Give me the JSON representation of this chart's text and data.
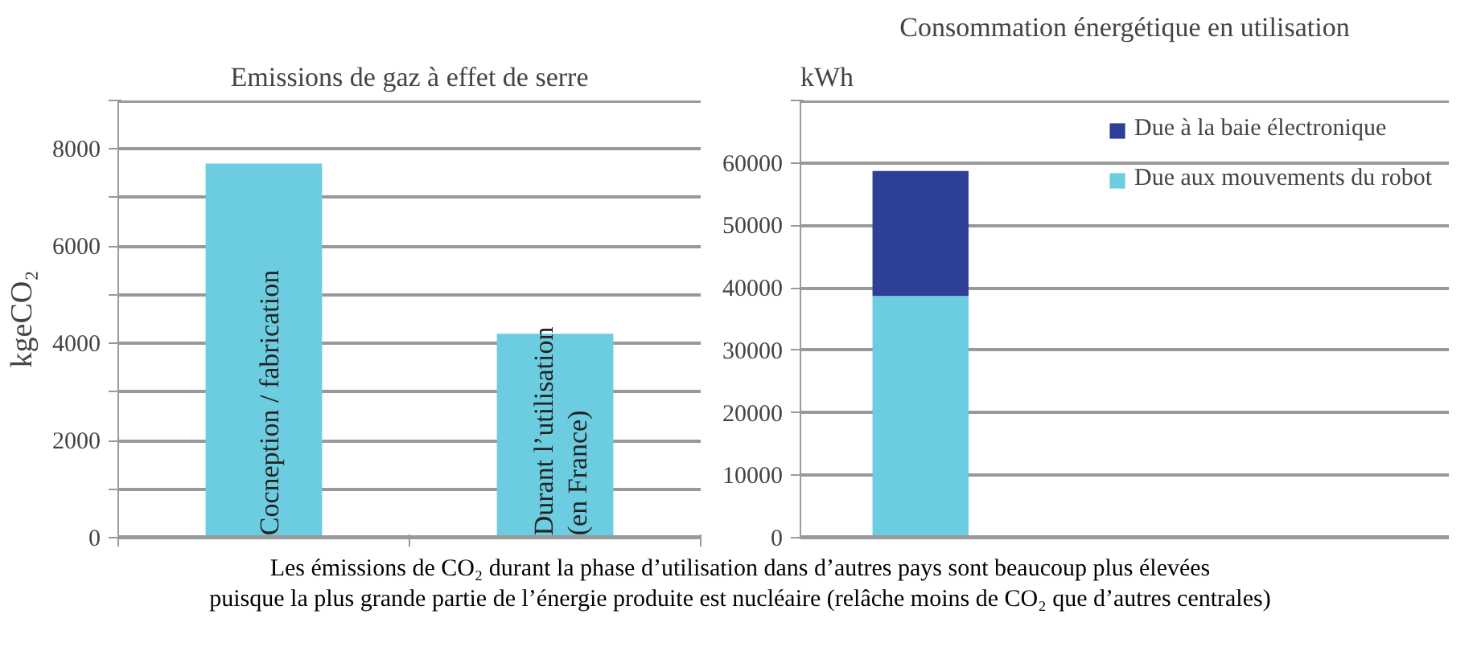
{
  "chart_data": [
    {
      "type": "bar",
      "title": "Emissions de gaz à effet de serre",
      "ylabel": "kgeCO₂",
      "categories": [
        "Cocneption / fabrication",
        "Durant l’utilisation\n(en France)"
      ],
      "values": [
        7700,
        4200
      ],
      "color": "#6dcde0",
      "ylim": [
        0,
        9000
      ],
      "yticks": [
        0,
        {
          "value": 1000,
          "label": null
        },
        2000,
        {
          "value": 3000,
          "label": null
        },
        4000,
        {
          "value": 5000,
          "label": null
        },
        6000,
        {
          "value": 7000,
          "label": null
        },
        8000,
        {
          "value": 9000,
          "label": null
        }
      ],
      "grid": "y",
      "legend": false
    },
    {
      "type": "bar",
      "title": "Consommation énergétique en utilisation",
      "ylabel": "kWh",
      "stacked": true,
      "categories": [
        null
      ],
      "series": [
        {
          "name": "Due aux mouvements du robot",
          "color": "#6dcde0",
          "values": [
            38700
          ]
        },
        {
          "name": "Due à la baie électronique",
          "color": "#2d3f96",
          "values": [
            20000
          ]
        }
      ],
      "ylim": [
        0,
        70000
      ],
      "yticks": [
        0,
        10000,
        20000,
        30000,
        40000,
        50000,
        60000,
        {
          "value": 70000,
          "label": null
        }
      ],
      "grid": "y",
      "legend": "right",
      "annotations": [
        "Les émissions de CO₂ durant la phase d’utilisation dans d’autres pays sont beaucoup plus élevées",
        "puisque la plus grande partie de l’énergie produite est nucléaire (relâche moins de CO₂ que d’autres centrales)"
      ]
    }
  ]
}
